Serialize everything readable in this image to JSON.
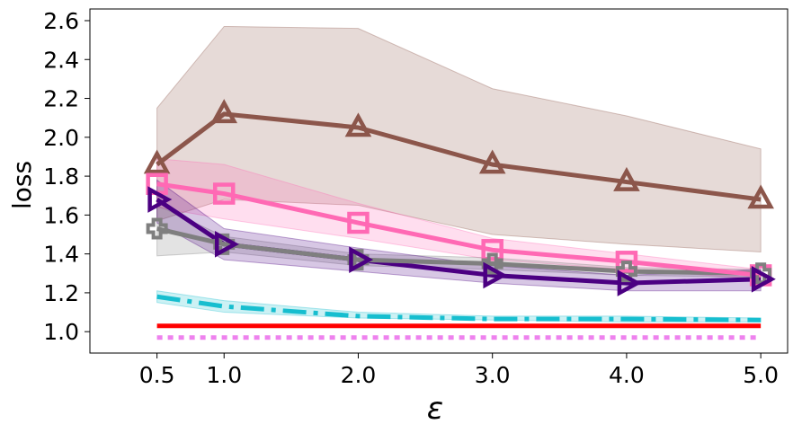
{
  "chart_data": {
    "type": "line",
    "title": "",
    "xlabel": "ε",
    "ylabel": "loss",
    "x": [
      0.5,
      1.0,
      2.0,
      3.0,
      4.0,
      5.0
    ],
    "xtick_labels": [
      "0.5",
      "1.0",
      "2.0",
      "3.0",
      "4.0",
      "5.0"
    ],
    "ytick_values": [
      1.0,
      1.2,
      1.4,
      1.6,
      1.8,
      2.0,
      2.2,
      2.4,
      2.6
    ],
    "ytick_labels": [
      "1.0",
      "1.2",
      "1.4",
      "1.6",
      "1.8",
      "2.0",
      "2.2",
      "2.4",
      "2.6"
    ],
    "xlim": [
      0.0,
      5.2
    ],
    "ylim": [
      0.89,
      2.66
    ],
    "grid": false,
    "legend": "none",
    "series": [
      {
        "name": "brown-triangle",
        "color": "#8c564b",
        "marker": "triangle-up",
        "linestyle": "solid",
        "values": [
          1.86,
          2.12,
          2.05,
          1.86,
          1.77,
          1.68
        ],
        "band_low": [
          1.57,
          1.68,
          1.65,
          1.5,
          1.45,
          1.41
        ],
        "band_high": [
          2.15,
          2.57,
          2.56,
          2.25,
          2.11,
          1.94
        ]
      },
      {
        "name": "pink-square",
        "color": "#ff69b4",
        "marker": "square",
        "linestyle": "solid",
        "values": [
          1.76,
          1.71,
          1.56,
          1.42,
          1.36,
          1.29
        ],
        "band_low": [
          1.64,
          1.58,
          1.48,
          1.37,
          1.32,
          1.27
        ],
        "band_high": [
          1.89,
          1.86,
          1.66,
          1.48,
          1.4,
          1.32
        ]
      },
      {
        "name": "gray-plus",
        "color": "#7f7f7f",
        "marker": "plus",
        "linestyle": "solid",
        "values": [
          1.53,
          1.45,
          1.37,
          1.35,
          1.31,
          1.3
        ],
        "band_low": [
          1.39,
          1.41,
          1.34,
          1.32,
          1.29,
          1.28
        ],
        "band_high": [
          1.65,
          1.49,
          1.4,
          1.38,
          1.33,
          1.32
        ]
      },
      {
        "name": "purple-triangle-right",
        "color": "#4b0082",
        "marker": "triangle-right",
        "linestyle": "solid",
        "values": [
          1.68,
          1.45,
          1.37,
          1.29,
          1.25,
          1.27
        ],
        "band_low": [
          1.56,
          1.37,
          1.31,
          1.25,
          1.21,
          1.21
        ],
        "band_high": [
          1.78,
          1.53,
          1.43,
          1.34,
          1.29,
          1.32
        ]
      },
      {
        "name": "cyan-dashdot",
        "color": "#17becf",
        "marker": "none",
        "linestyle": "dashdot",
        "values": [
          1.18,
          1.13,
          1.08,
          1.065,
          1.065,
          1.06
        ],
        "band_low": [
          1.15,
          1.1,
          1.07,
          1.06,
          1.05,
          1.05
        ],
        "band_high": [
          1.21,
          1.16,
          1.1,
          1.08,
          1.08,
          1.07
        ]
      },
      {
        "name": "red-solid",
        "color": "#ff0000",
        "marker": "none",
        "linestyle": "solid",
        "values": [
          1.03,
          1.03,
          1.03,
          1.03,
          1.03,
          1.03
        ]
      },
      {
        "name": "violet-dotted",
        "color": "#ee82ee",
        "marker": "none",
        "linestyle": "dotted",
        "values": [
          0.97,
          0.97,
          0.97,
          0.97,
          0.97,
          0.97
        ]
      }
    ]
  }
}
